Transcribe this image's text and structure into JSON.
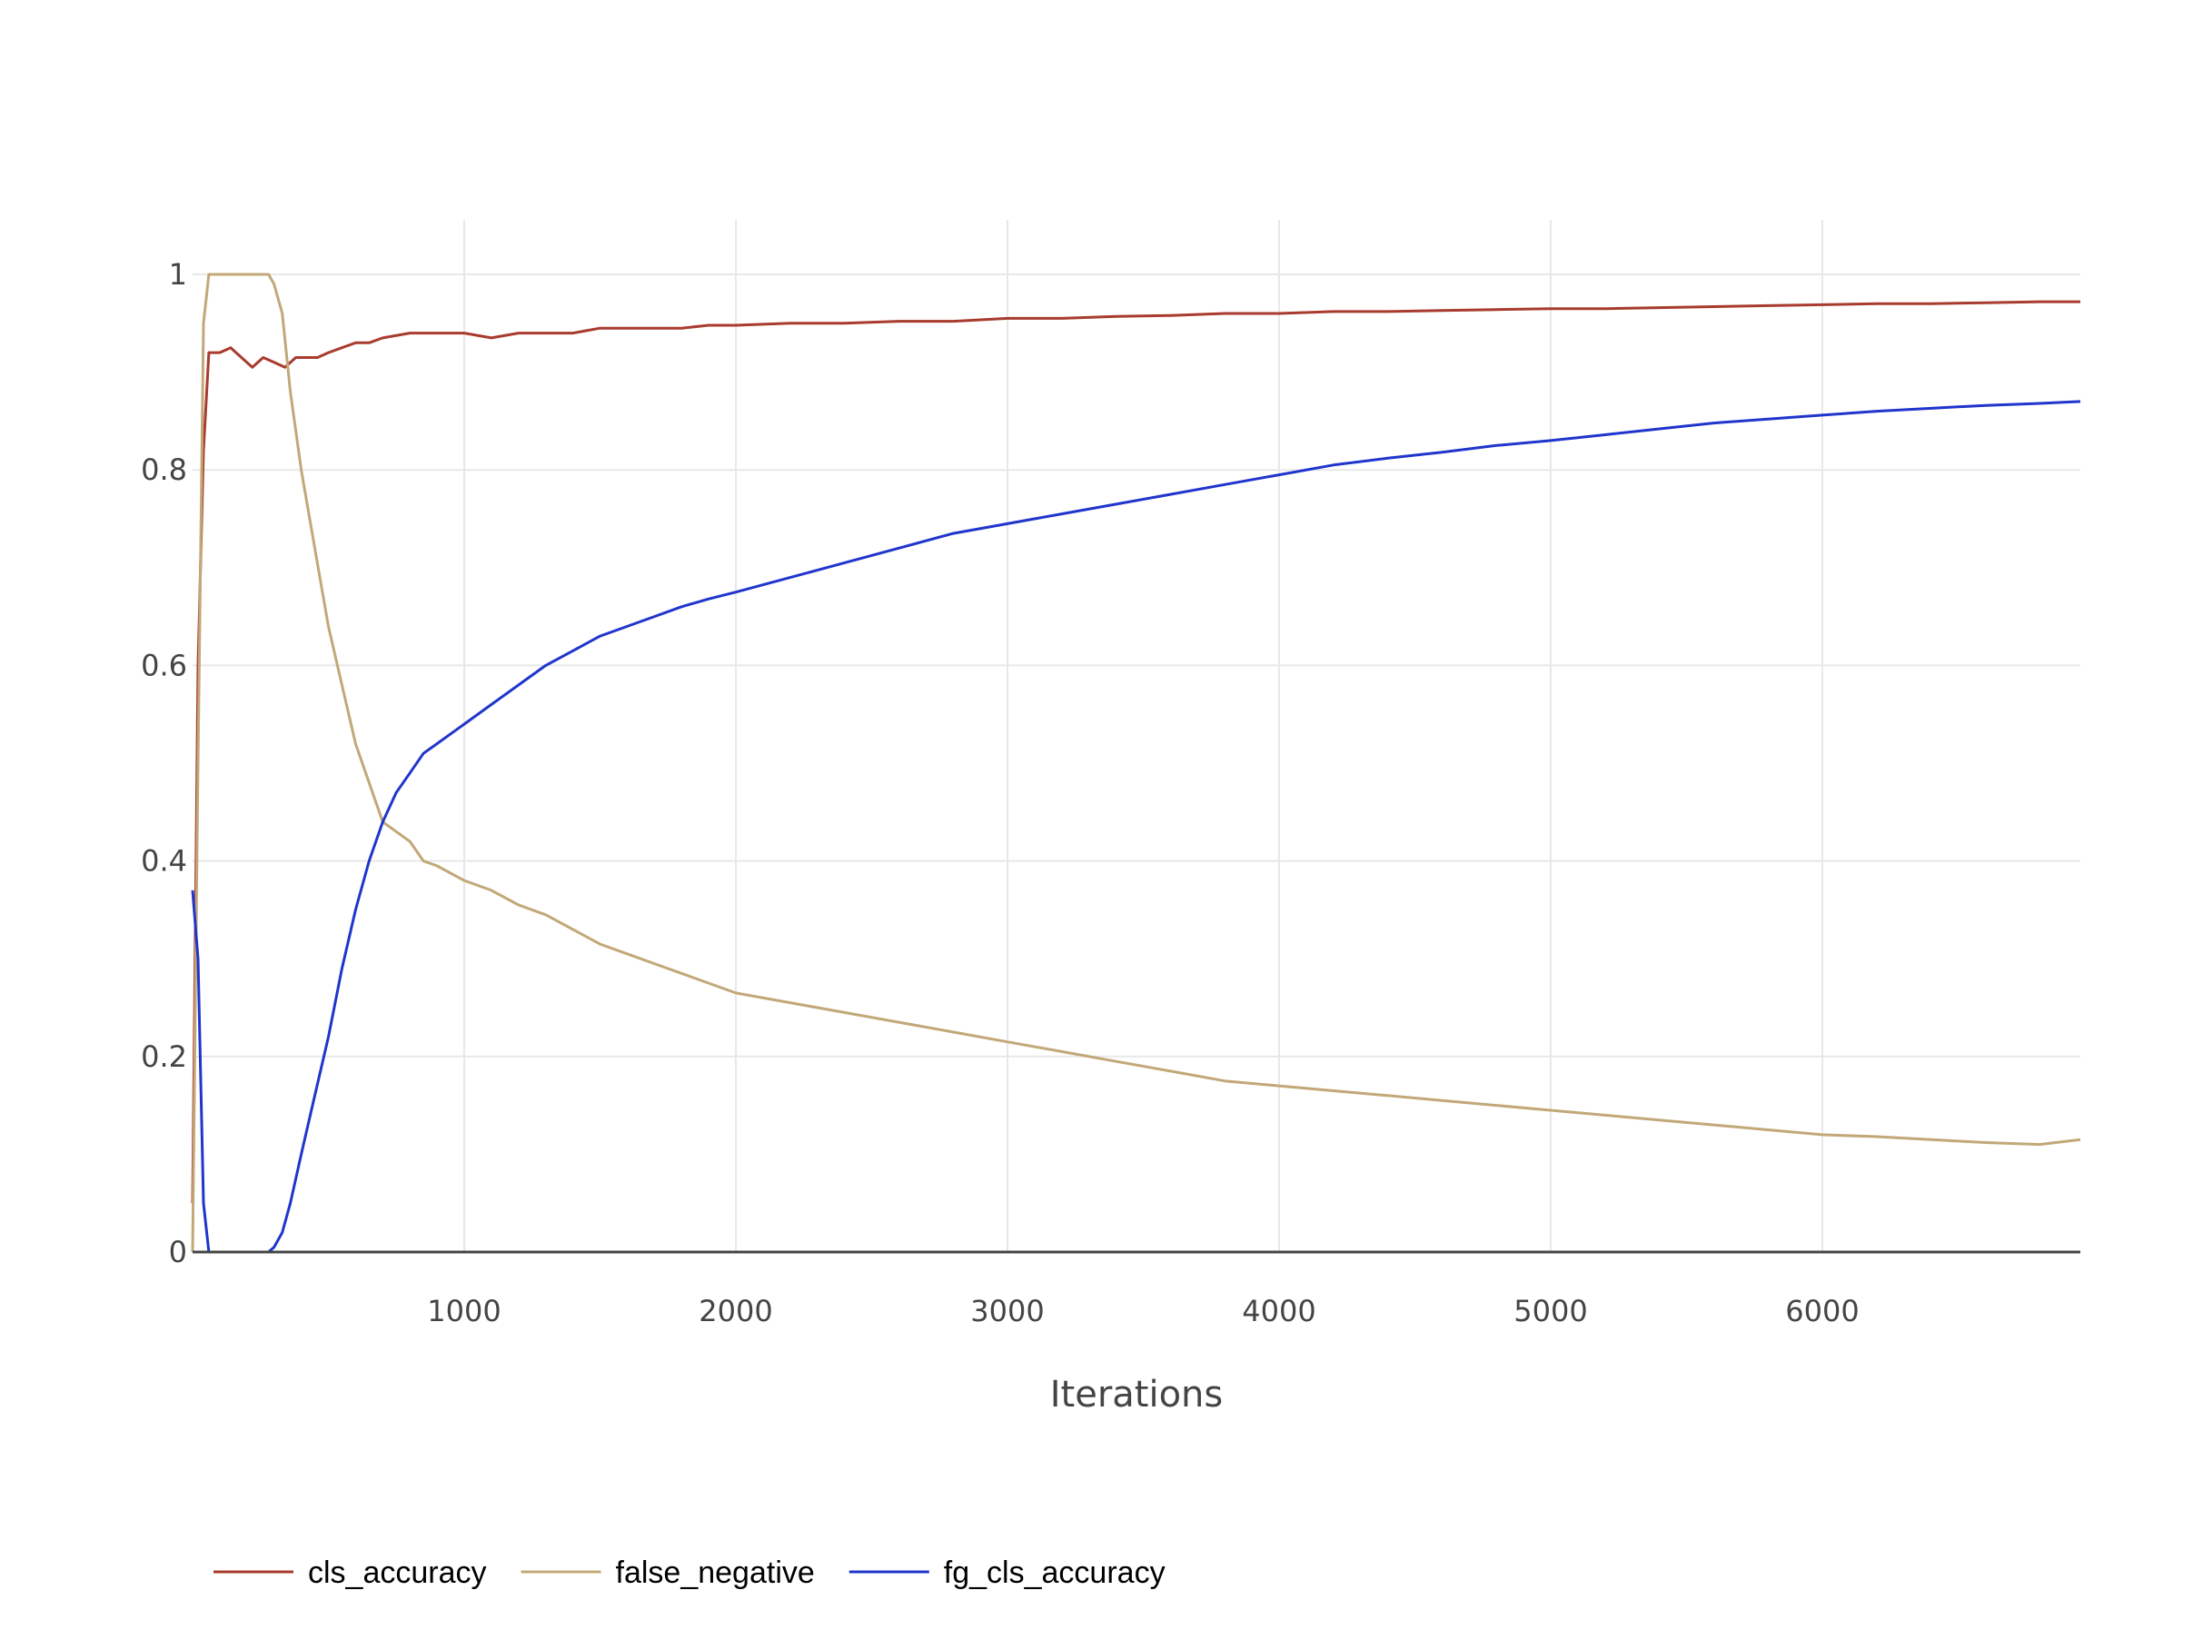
{
  "chart_data": {
    "type": "line",
    "title": "",
    "xlabel": "Iterations",
    "ylabel": "",
    "xlim": [
      0,
      6950
    ],
    "ylim": [
      0,
      1
    ],
    "x_ticks": [
      1000,
      2000,
      3000,
      4000,
      5000,
      6000
    ],
    "y_ticks": [
      0,
      0.2,
      0.4,
      0.6,
      0.8,
      1
    ],
    "y_tick_labels": [
      "0",
      "0.2",
      "0.4",
      "0.6",
      "0.8",
      "1"
    ],
    "grid": true,
    "legend_position": "bottom-left",
    "series": [
      {
        "name": "cls_accuracy",
        "color": "#a83b2e",
        "points": [
          [
            0,
            0.05
          ],
          [
            20,
            0.6
          ],
          [
            40,
            0.82
          ],
          [
            60,
            0.92
          ],
          [
            100,
            0.92
          ],
          [
            140,
            0.925
          ],
          [
            180,
            0.915
          ],
          [
            220,
            0.905
          ],
          [
            260,
            0.915
          ],
          [
            300,
            0.91
          ],
          [
            340,
            0.905
          ],
          [
            380,
            0.915
          ],
          [
            420,
            0.915
          ],
          [
            460,
            0.915
          ],
          [
            500,
            0.92
          ],
          [
            550,
            0.925
          ],
          [
            600,
            0.93
          ],
          [
            650,
            0.93
          ],
          [
            700,
            0.935
          ],
          [
            800,
            0.94
          ],
          [
            900,
            0.94
          ],
          [
            1000,
            0.94
          ],
          [
            1100,
            0.935
          ],
          [
            1200,
            0.94
          ],
          [
            1300,
            0.94
          ],
          [
            1400,
            0.94
          ],
          [
            1500,
            0.945
          ],
          [
            1600,
            0.945
          ],
          [
            1700,
            0.945
          ],
          [
            1800,
            0.945
          ],
          [
            1900,
            0.948
          ],
          [
            2000,
            0.948
          ],
          [
            2200,
            0.95
          ],
          [
            2400,
            0.95
          ],
          [
            2600,
            0.952
          ],
          [
            2800,
            0.952
          ],
          [
            3000,
            0.955
          ],
          [
            3200,
            0.955
          ],
          [
            3400,
            0.957
          ],
          [
            3600,
            0.958
          ],
          [
            3800,
            0.96
          ],
          [
            4000,
            0.96
          ],
          [
            4200,
            0.962
          ],
          [
            4400,
            0.962
          ],
          [
            4600,
            0.963
          ],
          [
            4800,
            0.964
          ],
          [
            5000,
            0.965
          ],
          [
            5200,
            0.965
          ],
          [
            5400,
            0.966
          ],
          [
            5600,
            0.967
          ],
          [
            5800,
            0.968
          ],
          [
            6000,
            0.969
          ],
          [
            6200,
            0.97
          ],
          [
            6400,
            0.97
          ],
          [
            6600,
            0.971
          ],
          [
            6800,
            0.972
          ],
          [
            6950,
            0.972
          ]
        ]
      },
      {
        "name": "false_negative",
        "color": "#c2a878",
        "points": [
          [
            0,
            0.0
          ],
          [
            20,
            0.5
          ],
          [
            40,
            0.95
          ],
          [
            60,
            1.0
          ],
          [
            100,
            1.0
          ],
          [
            200,
            1.0
          ],
          [
            280,
            1.0
          ],
          [
            300,
            0.99
          ],
          [
            330,
            0.96
          ],
          [
            360,
            0.88
          ],
          [
            400,
            0.8
          ],
          [
            450,
            0.72
          ],
          [
            500,
            0.64
          ],
          [
            550,
            0.58
          ],
          [
            600,
            0.52
          ],
          [
            650,
            0.48
          ],
          [
            700,
            0.44
          ],
          [
            750,
            0.43
          ],
          [
            800,
            0.42
          ],
          [
            850,
            0.4
          ],
          [
            900,
            0.395
          ],
          [
            1000,
            0.38
          ],
          [
            1100,
            0.37
          ],
          [
            1200,
            0.355
          ],
          [
            1300,
            0.345
          ],
          [
            1400,
            0.33
          ],
          [
            1500,
            0.315
          ],
          [
            1600,
            0.305
          ],
          [
            1700,
            0.295
          ],
          [
            1800,
            0.285
          ],
          [
            1900,
            0.275
          ],
          [
            2000,
            0.265
          ],
          [
            2200,
            0.255
          ],
          [
            2400,
            0.245
          ],
          [
            2600,
            0.235
          ],
          [
            2800,
            0.225
          ],
          [
            3000,
            0.215
          ],
          [
            3200,
            0.205
          ],
          [
            3400,
            0.195
          ],
          [
            3600,
            0.185
          ],
          [
            3800,
            0.175
          ],
          [
            4000,
            0.17
          ],
          [
            4200,
            0.165
          ],
          [
            4400,
            0.16
          ],
          [
            4600,
            0.155
          ],
          [
            4800,
            0.15
          ],
          [
            5000,
            0.145
          ],
          [
            5200,
            0.14
          ],
          [
            5400,
            0.135
          ],
          [
            5600,
            0.13
          ],
          [
            5800,
            0.125
          ],
          [
            6000,
            0.12
          ],
          [
            6200,
            0.118
          ],
          [
            6400,
            0.115
          ],
          [
            6600,
            0.112
          ],
          [
            6800,
            0.11
          ],
          [
            6950,
            0.115
          ]
        ]
      },
      {
        "name": "fg_cls_accuracy",
        "color": "#1f35cc",
        "points": [
          [
            0,
            0.37
          ],
          [
            20,
            0.3
          ],
          [
            40,
            0.05
          ],
          [
            60,
            0.0
          ],
          [
            100,
            0.0
          ],
          [
            200,
            0.0
          ],
          [
            280,
            0.0
          ],
          [
            300,
            0.005
          ],
          [
            330,
            0.02
          ],
          [
            360,
            0.05
          ],
          [
            400,
            0.1
          ],
          [
            450,
            0.16
          ],
          [
            500,
            0.22
          ],
          [
            550,
            0.29
          ],
          [
            600,
            0.35
          ],
          [
            650,
            0.4
          ],
          [
            700,
            0.44
          ],
          [
            750,
            0.47
          ],
          [
            800,
            0.49
          ],
          [
            850,
            0.51
          ],
          [
            900,
            0.52
          ],
          [
            1000,
            0.54
          ],
          [
            1100,
            0.56
          ],
          [
            1200,
            0.58
          ],
          [
            1300,
            0.6
          ],
          [
            1400,
            0.615
          ],
          [
            1500,
            0.63
          ],
          [
            1600,
            0.64
          ],
          [
            1700,
            0.65
          ],
          [
            1800,
            0.66
          ],
          [
            1900,
            0.668
          ],
          [
            2000,
            0.675
          ],
          [
            2200,
            0.69
          ],
          [
            2400,
            0.705
          ],
          [
            2600,
            0.72
          ],
          [
            2800,
            0.735
          ],
          [
            3000,
            0.745
          ],
          [
            3200,
            0.755
          ],
          [
            3400,
            0.765
          ],
          [
            3600,
            0.775
          ],
          [
            3800,
            0.785
          ],
          [
            4000,
            0.795
          ],
          [
            4200,
            0.805
          ],
          [
            4400,
            0.812
          ],
          [
            4600,
            0.818
          ],
          [
            4800,
            0.825
          ],
          [
            5000,
            0.83
          ],
          [
            5200,
            0.836
          ],
          [
            5400,
            0.842
          ],
          [
            5600,
            0.848
          ],
          [
            5800,
            0.852
          ],
          [
            6000,
            0.856
          ],
          [
            6200,
            0.86
          ],
          [
            6400,
            0.863
          ],
          [
            6600,
            0.866
          ],
          [
            6800,
            0.868
          ],
          [
            6950,
            0.87
          ]
        ]
      }
    ]
  }
}
